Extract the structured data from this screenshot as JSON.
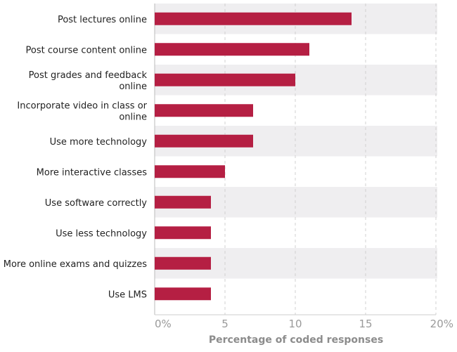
{
  "chart_data": {
    "type": "bar",
    "orientation": "horizontal",
    "categories": [
      "Post lectures online",
      "Post course content online",
      "Post grades and feedback online",
      "Incorporate video in class or online",
      "Use more technology",
      "More interactive classes",
      "Use software correctly",
      "Use less technology",
      "More online exams and quizzes",
      "Use LMS"
    ],
    "values": [
      14,
      11,
      10,
      7,
      7,
      5,
      4,
      4,
      4,
      4
    ],
    "xlabel": "Percentage of coded responses",
    "xlim": [
      0,
      20
    ],
    "xticks": [
      0,
      5,
      10,
      15,
      20
    ],
    "xtick_labels": [
      "0%",
      "5",
      "10",
      "15",
      "20%"
    ],
    "grid": "vertical dashed",
    "colors": {
      "bar": "#b51f43",
      "band": "#efeef0",
      "grid": "#d0d0d0",
      "tick_text": "#9a9a9a",
      "axis_title_text": "#8c8c8c"
    }
  }
}
